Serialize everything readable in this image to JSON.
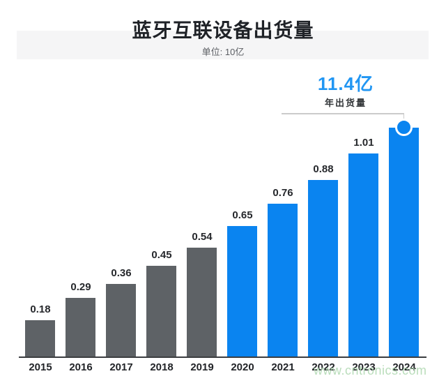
{
  "chart_data": {
    "type": "bar",
    "title": "蓝牙互联设备出货量",
    "subtitle": "单位: 10亿",
    "categories": [
      "2015",
      "2016",
      "2017",
      "2018",
      "2019",
      "2020",
      "2021",
      "2022",
      "2023",
      "2024"
    ],
    "values": [
      0.18,
      0.29,
      0.36,
      0.45,
      0.54,
      0.65,
      0.76,
      0.88,
      1.01,
      1.14
    ],
    "bar_labels": [
      "0.18",
      "0.29",
      "0.36",
      "0.45",
      "0.54",
      "0.65",
      "0.76",
      "0.88",
      "1.01",
      ""
    ],
    "highlight": {
      "category": "2024",
      "value_label": "11.4亿",
      "sublabel": "年出货量"
    },
    "colors": {
      "past_bars": "#5e6266",
      "recent_bars": "#0a84f0",
      "highlight_text": "#2196f3",
      "marker_fill": "#0a84f0"
    },
    "ylim": [
      0,
      1.25
    ],
    "xlabel": "",
    "ylabel": "",
    "grid": false,
    "legend": false
  },
  "watermark": "www.cntronics.com"
}
